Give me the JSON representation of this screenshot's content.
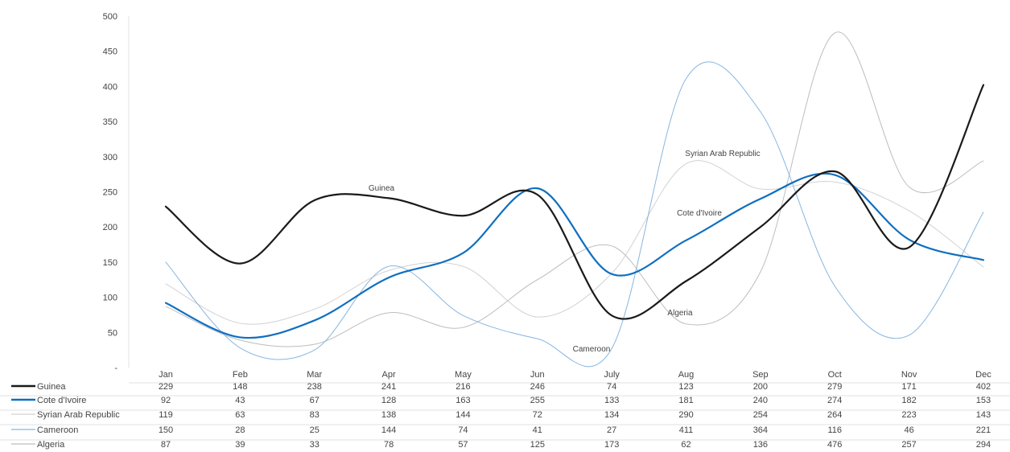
{
  "chart_data": {
    "type": "line",
    "title": "",
    "xlabel": "",
    "ylabel": "",
    "ylim": [
      0,
      500
    ],
    "y_ticks": [
      "-",
      "50",
      "100",
      "150",
      "200",
      "250",
      "300",
      "350",
      "400",
      "450",
      "500"
    ],
    "grid": false,
    "legend": "data table below chart",
    "curve": "smoothed",
    "categories": [
      "Jan",
      "Feb",
      "Mar",
      "Apr",
      "May",
      "Jun",
      "July",
      "Aug",
      "Sep",
      "Oct",
      "Nov",
      "Dec"
    ],
    "series": [
      {
        "name": "Guinea",
        "color": "#1a1a1a",
        "values": [
          229,
          148,
          238,
          241,
          216,
          246,
          74,
          123,
          200,
          279,
          171,
          402
        ],
        "label": "Guinea"
      },
      {
        "name": "Cote d'Ivoire",
        "color": "#0f6fc0",
        "values": [
          92,
          43,
          67,
          128,
          163,
          255,
          133,
          181,
          240,
          274,
          182,
          153
        ],
        "label": "Cote d'Ivoire"
      },
      {
        "name": "Syrian Arab Republic",
        "color": "#d2d2d2",
        "values": [
          119,
          63,
          83,
          138,
          144,
          72,
          134,
          290,
          254,
          264,
          223,
          143
        ],
        "label": "Syrian Arab Republic"
      },
      {
        "name": "Cameroon",
        "color": "#88b6df",
        "values": [
          150,
          28,
          25,
          144,
          74,
          41,
          27,
          411,
          364,
          116,
          46,
          221
        ],
        "label": "Cameroon"
      },
      {
        "name": "Algeria",
        "color": "#bdbdbd",
        "values": [
          87,
          39,
          33,
          78,
          57,
          125,
          173,
          62,
          136,
          476,
          257,
          294
        ],
        "label": "Algeria"
      }
    ]
  }
}
